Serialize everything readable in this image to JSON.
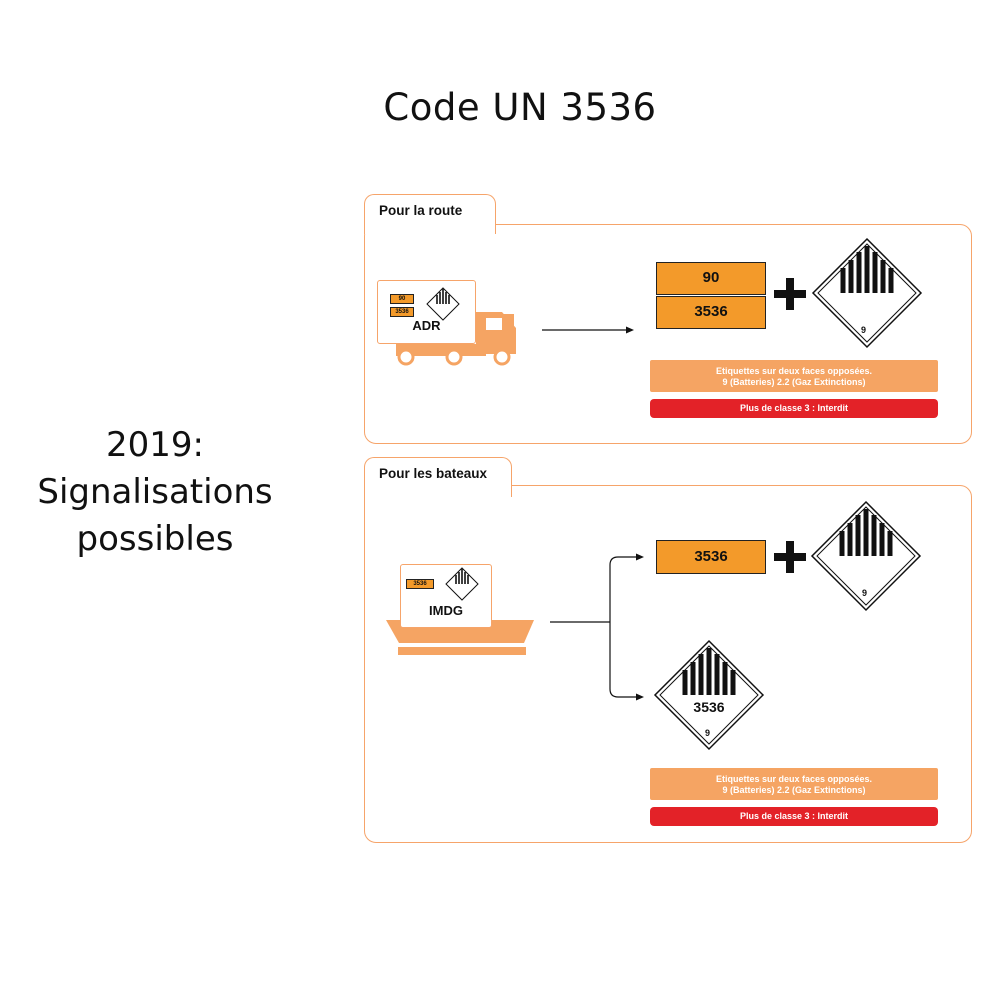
{
  "title": "Code UN 3536",
  "side_heading": {
    "line1": "2019:",
    "line2": "Signalisations",
    "line3": "possibles"
  },
  "road": {
    "tab_label": "Pour la route",
    "vehicle_label": "ADR",
    "placard_top": "90",
    "placard_bottom": "3536",
    "mini_top": "90",
    "mini_bottom": "3536",
    "label_class": "9",
    "note_line1": "Etiquettes sur deux faces opposées.",
    "note_line2": "9 (Batteries) 2.2 (Gaz Extinctions)",
    "ban": "Plus de classe 3 : Interdit"
  },
  "sea": {
    "tab_label": "Pour les bateaux",
    "vessel_label": "IMDG",
    "placard": "3536",
    "mini": "3536",
    "label_class": "9",
    "diamond_number": "3536",
    "diamond_class": "9",
    "note_line1": "Etiquettes sur deux faces opposées.",
    "note_line2": "9 (Batteries) 2.2 (Gaz Extinctions)",
    "ban": "Plus de classe 3 : Interdit"
  },
  "colors": {
    "accent": "#f39a2a",
    "light_accent": "#f5a463",
    "border": "#f6a46a",
    "danger": "#e32228"
  }
}
